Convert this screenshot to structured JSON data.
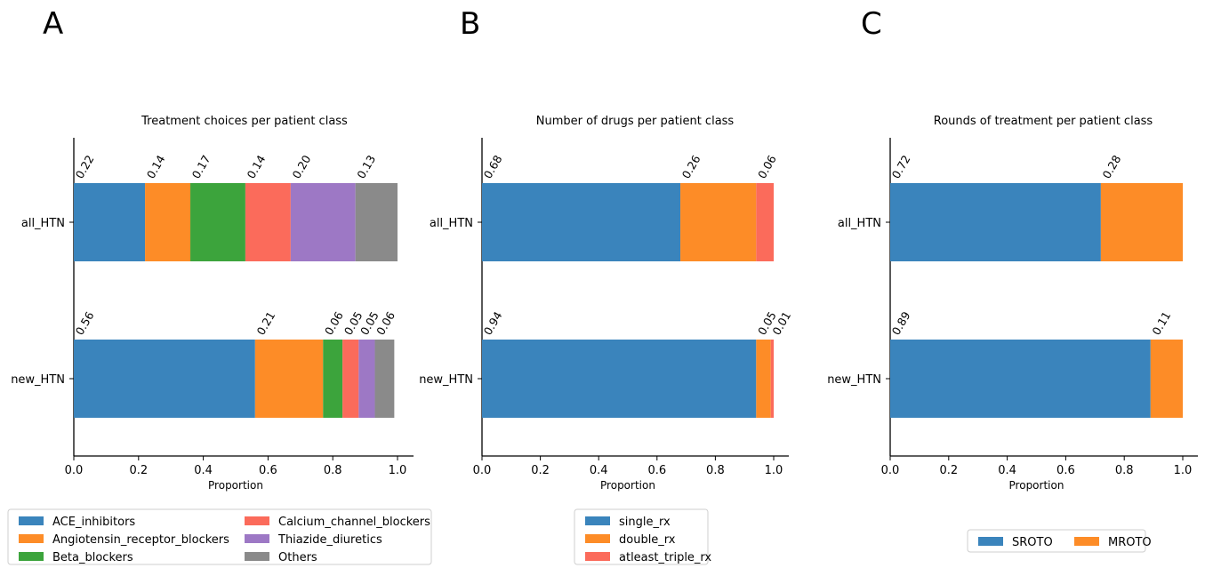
{
  "colors": {
    "blue": "#3a84bc",
    "orange": "#fd8c27",
    "green": "#3ca43c",
    "red": "#fb6b5b",
    "purple": "#9d78c5",
    "gray": "#8a8a8a"
  },
  "panel_letters": [
    "A",
    "B",
    "C"
  ],
  "chart_data": [
    {
      "type": "bar",
      "orientation": "horizontal-stacked",
      "title": "Treatment choices per patient class",
      "xlabel": "Proportion",
      "ylabel": "",
      "categories": [
        "all_HTN",
        "new_HTN"
      ],
      "xlim": [
        0,
        1.0
      ],
      "xticks": [
        "0.0",
        "0.2",
        "0.4",
        "0.6",
        "0.8",
        "1.0"
      ],
      "legend_position": "bottom",
      "legend_columns": 2,
      "series": [
        {
          "name": "ACE_inhibitors",
          "color": "#3a84bc",
          "values": [
            0.22,
            0.56
          ],
          "labels": [
            "0.22",
            "0.56"
          ]
        },
        {
          "name": "Angiotensin_receptor_blockers",
          "color": "#fd8c27",
          "values": [
            0.14,
            0.21
          ],
          "labels": [
            "0.14",
            "0.21"
          ]
        },
        {
          "name": "Beta_blockers",
          "color": "#3ca43c",
          "values": [
            0.17,
            0.06
          ],
          "labels": [
            "0.17",
            "0.06"
          ]
        },
        {
          "name": "Calcium_channel_blockers",
          "color": "#fb6b5b",
          "values": [
            0.14,
            0.05
          ],
          "labels": [
            "0.14",
            "0.05"
          ]
        },
        {
          "name": "Thiazide_diuretics",
          "color": "#9d78c5",
          "values": [
            0.2,
            0.05
          ],
          "labels": [
            "0.20",
            "0.05"
          ]
        },
        {
          "name": "Others",
          "color": "#8a8a8a",
          "values": [
            0.13,
            0.06
          ],
          "labels": [
            "0.13",
            "0.06"
          ]
        }
      ]
    },
    {
      "type": "bar",
      "orientation": "horizontal-stacked",
      "title": "Number of drugs per patient class",
      "xlabel": "Proportion",
      "ylabel": "",
      "categories": [
        "all_HTN",
        "new_HTN"
      ],
      "xlim": [
        0,
        1.0
      ],
      "xticks": [
        "0.0",
        "0.2",
        "0.4",
        "0.6",
        "0.8",
        "1.0"
      ],
      "legend_position": "bottom",
      "legend_columns": 1,
      "series": [
        {
          "name": "single_rx",
          "color": "#3a84bc",
          "values": [
            0.68,
            0.94
          ],
          "labels": [
            "0.68",
            "0.94"
          ]
        },
        {
          "name": "double_rx",
          "color": "#fd8c27",
          "values": [
            0.26,
            0.05
          ],
          "labels": [
            "0.26",
            "0.05"
          ]
        },
        {
          "name": "atleast_triple_rx",
          "color": "#fb6b5b",
          "values": [
            0.06,
            0.01
          ],
          "labels": [
            "0.06",
            "0.01"
          ]
        }
      ]
    },
    {
      "type": "bar",
      "orientation": "horizontal-stacked",
      "title": "Rounds of treatment per patient class",
      "xlabel": "Proportion",
      "ylabel": "",
      "categories": [
        "all_HTN",
        "new_HTN"
      ],
      "xlim": [
        0,
        1.0
      ],
      "xticks": [
        "0.0",
        "0.2",
        "0.4",
        "0.6",
        "0.8",
        "1.0"
      ],
      "legend_position": "bottom",
      "legend_columns": 2,
      "series": [
        {
          "name": "SROTO",
          "color": "#3a84bc",
          "values": [
            0.72,
            0.89
          ],
          "labels": [
            "0.72",
            "0.89"
          ]
        },
        {
          "name": "MROTO",
          "color": "#fd8c27",
          "values": [
            0.28,
            0.11
          ],
          "labels": [
            "0.28",
            "0.11"
          ]
        }
      ]
    }
  ]
}
